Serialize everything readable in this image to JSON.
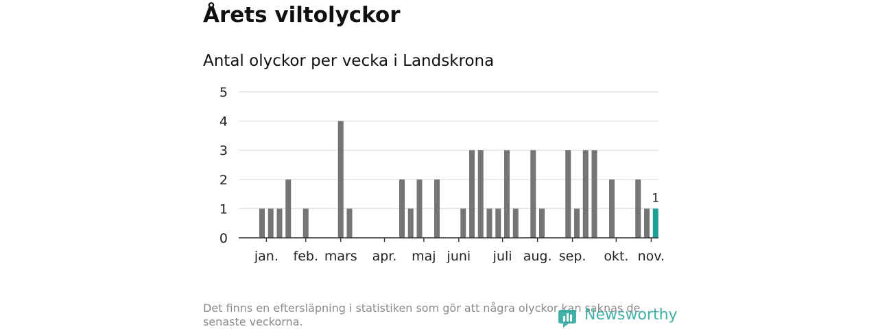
{
  "header": {
    "title": "Årets viltolyckor",
    "subtitle": "Antal olyckor per vecka i Landskrona"
  },
  "footer": {
    "note": "Det finns en eftersläpning i statistiken som gör att några olyckor kan saknas de senaste veckorna.",
    "brand": "Newsworthy"
  },
  "colors": {
    "bar": "#757575",
    "highlight": "#1a9e96",
    "grid": "#dddddd",
    "axis": "#333333",
    "brand": "#2fa89d"
  },
  "chart_data": {
    "type": "bar",
    "title": "Antal olyckor per vecka i Landskrona",
    "xlabel": "",
    "ylabel": "",
    "ylim": [
      0,
      5
    ],
    "yticks": [
      0,
      1,
      2,
      3,
      4,
      5
    ],
    "x_unit": "week",
    "x_range": [
      1,
      53
    ],
    "month_ticks": [
      {
        "label": "jan.",
        "week": 1.5
      },
      {
        "label": "feb.",
        "week": 6
      },
      {
        "label": "mars",
        "week": 10
      },
      {
        "label": "apr.",
        "week": 15
      },
      {
        "label": "maj",
        "week": 19.5
      },
      {
        "label": "juni",
        "week": 23.5
      },
      {
        "label": "juli",
        "week": 28.5
      },
      {
        "label": "aug.",
        "week": 32.5
      },
      {
        "label": "sep.",
        "week": 36.5
      },
      {
        "label": "okt.",
        "week": 41.5
      },
      {
        "label": "nov.",
        "week": 45.5
      }
    ],
    "weeks": [
      1,
      2,
      3,
      4,
      6,
      10,
      11,
      17,
      18,
      19,
      21,
      24,
      25,
      26,
      27,
      28,
      29,
      30,
      32,
      33,
      36,
      37,
      38,
      39,
      41,
      44,
      45,
      46
    ],
    "values": [
      1,
      1,
      1,
      2,
      1,
      4,
      1,
      2,
      1,
      2,
      2,
      1,
      3,
      3,
      1,
      1,
      3,
      1,
      3,
      1,
      3,
      1,
      3,
      3,
      2,
      2,
      1,
      1
    ],
    "highlight_week": 46,
    "highlight_label": "1"
  }
}
